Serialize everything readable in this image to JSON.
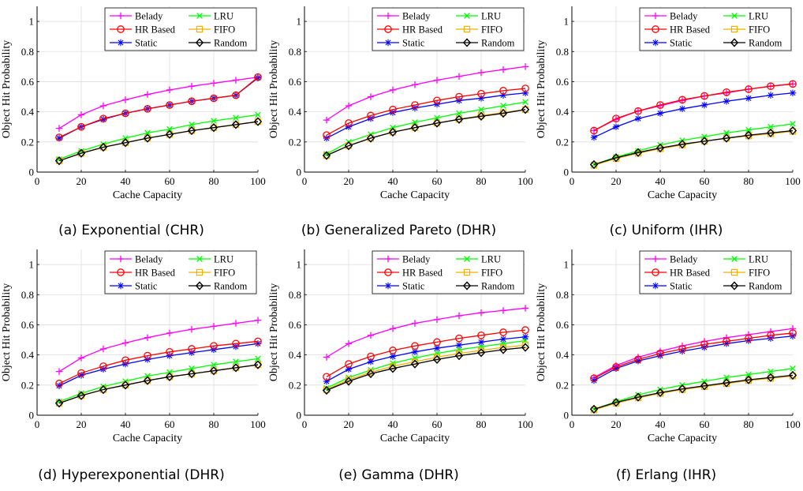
{
  "chart_data": [
    {
      "type": "line",
      "caption": "(a) Exponential (CHR)",
      "xlabel": "Cache Capacity",
      "ylabel": "Object Hit Probability",
      "xlim": [
        0,
        100
      ],
      "ylim": [
        0,
        1.1
      ],
      "xticks": [
        "0",
        "20",
        "40",
        "60",
        "80",
        "100"
      ],
      "yticks": [
        "0",
        "0.2",
        "0.4",
        "0.6",
        "0.8",
        "1"
      ],
      "legend_position": "top-right",
      "grid": true,
      "x": [
        10,
        20,
        30,
        40,
        50,
        60,
        70,
        80,
        90,
        100
      ],
      "series": [
        {
          "name": "Belady",
          "color": "#ff00ff",
          "marker": "plus",
          "values": [
            0.29,
            0.38,
            0.44,
            0.48,
            0.515,
            0.545,
            0.57,
            0.59,
            0.61,
            0.63
          ]
        },
        {
          "name": "LRU",
          "color": "#00ff00",
          "marker": "x",
          "values": [
            0.085,
            0.14,
            0.185,
            0.225,
            0.26,
            0.285,
            0.315,
            0.34,
            0.36,
            0.38
          ]
        },
        {
          "name": "HR Based",
          "color": "#ff0000",
          "marker": "circle",
          "values": [
            0.23,
            0.3,
            0.355,
            0.39,
            0.42,
            0.445,
            0.47,
            0.49,
            0.51,
            0.63
          ]
        },
        {
          "name": "FIFO",
          "color": "#f0b000",
          "marker": "square",
          "values": [
            0.075,
            0.125,
            0.165,
            0.195,
            0.225,
            0.25,
            0.275,
            0.295,
            0.315,
            0.335
          ]
        },
        {
          "name": "Static",
          "color": "#0000ff",
          "marker": "star",
          "values": [
            0.225,
            0.3,
            0.35,
            0.39,
            0.42,
            0.445,
            0.47,
            0.49,
            0.51,
            0.625
          ]
        },
        {
          "name": "Random",
          "color": "#000000",
          "marker": "diamond",
          "values": [
            0.075,
            0.125,
            0.165,
            0.195,
            0.225,
            0.25,
            0.275,
            0.295,
            0.315,
            0.335
          ]
        }
      ]
    },
    {
      "type": "line",
      "caption": "(b) Generalized Pareto (DHR)",
      "xlabel": "Cache Capacity",
      "ylabel": "Object Hit Probability",
      "xlim": [
        0,
        100
      ],
      "ylim": [
        0,
        1.1
      ],
      "xticks": [
        "0",
        "20",
        "40",
        "60",
        "80",
        "100"
      ],
      "yticks": [
        "0",
        "0.2",
        "0.4",
        "0.6",
        "0.8",
        "1"
      ],
      "legend_position": "top-right",
      "grid": true,
      "x": [
        10,
        20,
        30,
        40,
        50,
        60,
        70,
        80,
        90,
        100
      ],
      "series": [
        {
          "name": "Belady",
          "color": "#ff00ff",
          "marker": "plus",
          "values": [
            0.345,
            0.44,
            0.5,
            0.545,
            0.58,
            0.61,
            0.635,
            0.66,
            0.68,
            0.7
          ]
        },
        {
          "name": "LRU",
          "color": "#00ff00",
          "marker": "x",
          "values": [
            0.12,
            0.2,
            0.25,
            0.295,
            0.33,
            0.36,
            0.39,
            0.415,
            0.44,
            0.465
          ]
        },
        {
          "name": "HR Based",
          "color": "#ff0000",
          "marker": "circle",
          "values": [
            0.245,
            0.325,
            0.375,
            0.415,
            0.445,
            0.475,
            0.5,
            0.52,
            0.54,
            0.555
          ]
        },
        {
          "name": "FIFO",
          "color": "#f0b000",
          "marker": "square",
          "values": [
            0.11,
            0.175,
            0.225,
            0.265,
            0.295,
            0.325,
            0.35,
            0.375,
            0.395,
            0.415
          ]
        },
        {
          "name": "Static",
          "color": "#0000ff",
          "marker": "star",
          "values": [
            0.225,
            0.3,
            0.355,
            0.395,
            0.425,
            0.45,
            0.475,
            0.49,
            0.51,
            0.525
          ]
        },
        {
          "name": "Random",
          "color": "#000000",
          "marker": "diamond",
          "values": [
            0.11,
            0.175,
            0.225,
            0.265,
            0.295,
            0.325,
            0.35,
            0.37,
            0.39,
            0.415
          ]
        }
      ]
    },
    {
      "type": "line",
      "caption": "(c) Uniform (IHR)",
      "xlabel": "Cache Capacity",
      "ylabel": "Object Hit Probability",
      "xlim": [
        0,
        100
      ],
      "ylim": [
        0,
        1.1
      ],
      "xticks": [
        "0",
        "20",
        "40",
        "60",
        "80",
        "100"
      ],
      "yticks": [
        "0",
        "0.2",
        "0.4",
        "0.6",
        "0.8",
        "1"
      ],
      "legend_position": "top-right",
      "grid": true,
      "x": [
        10,
        20,
        30,
        40,
        50,
        60,
        70,
        80,
        90,
        100
      ],
      "series": [
        {
          "name": "Belady",
          "color": "#ff00ff",
          "marker": "plus",
          "values": [
            0.275,
            0.35,
            0.405,
            0.44,
            0.475,
            0.505,
            0.525,
            0.55,
            0.57,
            0.585
          ]
        },
        {
          "name": "LRU",
          "color": "#00ff00",
          "marker": "x",
          "values": [
            0.05,
            0.1,
            0.14,
            0.18,
            0.21,
            0.235,
            0.26,
            0.28,
            0.3,
            0.32
          ]
        },
        {
          "name": "HR Based",
          "color": "#ff0000",
          "marker": "circle",
          "values": [
            0.275,
            0.355,
            0.405,
            0.445,
            0.48,
            0.505,
            0.53,
            0.55,
            0.57,
            0.585
          ]
        },
        {
          "name": "FIFO",
          "color": "#f0b000",
          "marker": "square",
          "values": [
            0.045,
            0.09,
            0.125,
            0.155,
            0.18,
            0.205,
            0.225,
            0.24,
            0.255,
            0.27
          ]
        },
        {
          "name": "Static",
          "color": "#0000ff",
          "marker": "star",
          "values": [
            0.23,
            0.3,
            0.355,
            0.39,
            0.42,
            0.445,
            0.47,
            0.49,
            0.51,
            0.525
          ]
        },
        {
          "name": "Random",
          "color": "#000000",
          "marker": "diamond",
          "values": [
            0.05,
            0.095,
            0.13,
            0.16,
            0.185,
            0.205,
            0.225,
            0.245,
            0.26,
            0.275
          ]
        }
      ]
    },
    {
      "type": "line",
      "caption": "(d) Hyperexponential (DHR)",
      "xlabel": "Cache Capacity",
      "ylabel": "Object Hit Probability",
      "xlim": [
        0,
        100
      ],
      "ylim": [
        0,
        1.1
      ],
      "xticks": [
        "0",
        "20",
        "40",
        "60",
        "80",
        "100"
      ],
      "yticks": [
        "0",
        "0.2",
        "0.4",
        "0.6",
        "0.8",
        "1"
      ],
      "legend_position": "top-right",
      "grid": true,
      "x": [
        10,
        20,
        30,
        40,
        50,
        60,
        70,
        80,
        90,
        100
      ],
      "series": [
        {
          "name": "Belady",
          "color": "#ff00ff",
          "marker": "plus",
          "values": [
            0.29,
            0.38,
            0.44,
            0.48,
            0.515,
            0.545,
            0.57,
            0.59,
            0.61,
            0.63
          ]
        },
        {
          "name": "LRU",
          "color": "#00ff00",
          "marker": "x",
          "values": [
            0.09,
            0.145,
            0.19,
            0.225,
            0.26,
            0.285,
            0.31,
            0.335,
            0.355,
            0.375
          ]
        },
        {
          "name": "HR Based",
          "color": "#ff0000",
          "marker": "circle",
          "values": [
            0.21,
            0.28,
            0.325,
            0.365,
            0.395,
            0.42,
            0.44,
            0.46,
            0.475,
            0.49
          ]
        },
        {
          "name": "FIFO",
          "color": "#f0b000",
          "marker": "square",
          "values": [
            0.08,
            0.13,
            0.17,
            0.2,
            0.23,
            0.255,
            0.275,
            0.295,
            0.315,
            0.335
          ]
        },
        {
          "name": "Static",
          "color": "#0000ff",
          "marker": "star",
          "values": [
            0.195,
            0.265,
            0.305,
            0.34,
            0.37,
            0.395,
            0.415,
            0.435,
            0.455,
            0.475
          ]
        },
        {
          "name": "Random",
          "color": "#000000",
          "marker": "diamond",
          "values": [
            0.08,
            0.13,
            0.17,
            0.2,
            0.23,
            0.255,
            0.275,
            0.295,
            0.315,
            0.335
          ]
        }
      ]
    },
    {
      "type": "line",
      "caption": "(e) Gamma (DHR)",
      "xlabel": "Cache Capacity",
      "ylabel": "Object Hit Probability",
      "xlim": [
        0,
        100
      ],
      "ylim": [
        0,
        1.1
      ],
      "xticks": [
        "0",
        "20",
        "40",
        "60",
        "80",
        "100"
      ],
      "yticks": [
        "0",
        "0.2",
        "0.4",
        "0.6",
        "0.8",
        "1"
      ],
      "legend_position": "top-right",
      "grid": true,
      "x": [
        10,
        20,
        30,
        40,
        50,
        60,
        70,
        80,
        90,
        100
      ],
      "series": [
        {
          "name": "Belady",
          "color": "#ff00ff",
          "marker": "plus",
          "values": [
            0.385,
            0.475,
            0.53,
            0.575,
            0.61,
            0.635,
            0.66,
            0.68,
            0.695,
            0.71
          ]
        },
        {
          "name": "LRU",
          "color": "#00ff00",
          "marker": "x",
          "values": [
            0.18,
            0.25,
            0.3,
            0.345,
            0.38,
            0.41,
            0.435,
            0.455,
            0.475,
            0.495
          ]
        },
        {
          "name": "HR Based",
          "color": "#ff0000",
          "marker": "circle",
          "values": [
            0.255,
            0.34,
            0.39,
            0.43,
            0.46,
            0.485,
            0.51,
            0.53,
            0.55,
            0.565
          ]
        },
        {
          "name": "FIFO",
          "color": "#f0b000",
          "marker": "square",
          "values": [
            0.17,
            0.235,
            0.285,
            0.325,
            0.355,
            0.385,
            0.41,
            0.43,
            0.45,
            0.465
          ]
        },
        {
          "name": "Static",
          "color": "#0000ff",
          "marker": "star",
          "values": [
            0.225,
            0.305,
            0.355,
            0.39,
            0.42,
            0.445,
            0.465,
            0.485,
            0.505,
            0.52
          ]
        },
        {
          "name": "Random",
          "color": "#000000",
          "marker": "diamond",
          "values": [
            0.165,
            0.225,
            0.275,
            0.31,
            0.34,
            0.37,
            0.395,
            0.415,
            0.435,
            0.45
          ]
        }
      ]
    },
    {
      "type": "line",
      "caption": "(f) Erlang (IHR)",
      "xlabel": "Cache Capacity",
      "ylabel": "Object Hit Probability",
      "xlim": [
        0,
        100
      ],
      "ylim": [
        0,
        1.1
      ],
      "xticks": [
        "0",
        "20",
        "40",
        "60",
        "80",
        "100"
      ],
      "yticks": [
        "0",
        "0.2",
        "0.4",
        "0.6",
        "0.8",
        "1"
      ],
      "legend_position": "top-right",
      "grid": true,
      "x": [
        10,
        20,
        30,
        40,
        50,
        60,
        70,
        80,
        90,
        100
      ],
      "series": [
        {
          "name": "Belady",
          "color": "#ff00ff",
          "marker": "plus",
          "values": [
            0.25,
            0.33,
            0.385,
            0.425,
            0.46,
            0.49,
            0.515,
            0.535,
            0.555,
            0.575
          ]
        },
        {
          "name": "LRU",
          "color": "#00ff00",
          "marker": "x",
          "values": [
            0.04,
            0.09,
            0.135,
            0.17,
            0.2,
            0.225,
            0.25,
            0.27,
            0.29,
            0.31
          ]
        },
        {
          "name": "HR Based",
          "color": "#ff0000",
          "marker": "circle",
          "values": [
            0.245,
            0.32,
            0.37,
            0.41,
            0.44,
            0.47,
            0.49,
            0.51,
            0.53,
            0.545
          ]
        },
        {
          "name": "FIFO",
          "color": "#f0b000",
          "marker": "square",
          "values": [
            0.035,
            0.08,
            0.115,
            0.145,
            0.17,
            0.19,
            0.21,
            0.23,
            0.245,
            0.26
          ]
        },
        {
          "name": "Static",
          "color": "#0000ff",
          "marker": "star",
          "values": [
            0.23,
            0.31,
            0.36,
            0.395,
            0.425,
            0.45,
            0.475,
            0.495,
            0.51,
            0.525
          ]
        },
        {
          "name": "Random",
          "color": "#000000",
          "marker": "diamond",
          "values": [
            0.04,
            0.085,
            0.12,
            0.15,
            0.175,
            0.195,
            0.215,
            0.235,
            0.25,
            0.265
          ]
        }
      ]
    }
  ]
}
